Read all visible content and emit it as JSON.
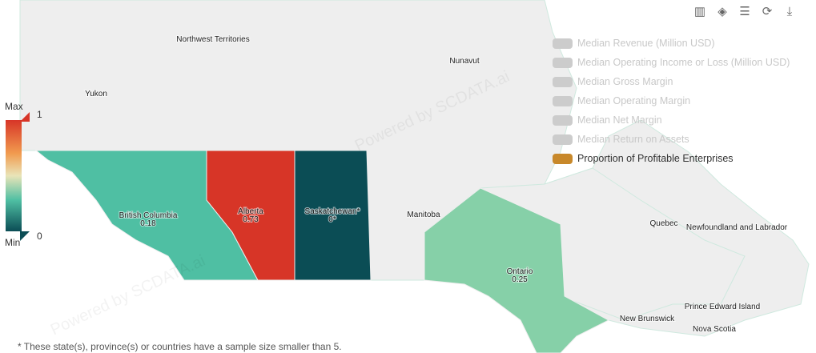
{
  "toolbar": {
    "icons": [
      "bar-chart-icon",
      "tag-icon",
      "table-icon",
      "refresh-icon",
      "download-icon"
    ]
  },
  "legend": {
    "items": [
      {
        "label": "Median Revenue (Million USD)",
        "active": false
      },
      {
        "label": "Median Operating Income or Loss (Million USD)",
        "active": false
      },
      {
        "label": "Median Gross Margin",
        "active": false
      },
      {
        "label": "Median Operating Margin",
        "active": false
      },
      {
        "label": "Median Net Margin",
        "active": false
      },
      {
        "label": "Median Return on Assets",
        "active": false
      },
      {
        "label": "Proportion of Profitable Enterprises",
        "active": true,
        "color": "#c8882a"
      }
    ]
  },
  "visual_map": {
    "max_label": "Max",
    "min_label": "Min",
    "max": "1",
    "min": "0",
    "colors": [
      "#d73527",
      "#f19b4f",
      "#e9e4b8",
      "#4fbfa3",
      "#0b4d55"
    ]
  },
  "regions": {
    "nwt": {
      "name": "Northwest Territories"
    },
    "nunavut": {
      "name": "Nunavut"
    },
    "yukon": {
      "name": "Yukon"
    },
    "bc": {
      "name": "British Columbia",
      "value": "0.18",
      "color": "#4fbfa3"
    },
    "alberta": {
      "name": "Alberta",
      "value": "0.73",
      "color": "#d73527"
    },
    "saskatchewan": {
      "name": "Saskatchewan*",
      "value": "0*",
      "color": "#0b4d55"
    },
    "manitoba": {
      "name": "Manitoba"
    },
    "ontario": {
      "name": "Ontario",
      "value": "0.25",
      "color": "#86d0a8"
    },
    "quebec": {
      "name": "Quebec"
    },
    "nl": {
      "name": "Newfoundland and Labrador"
    },
    "nb": {
      "name": "New Brunswick"
    },
    "pei": {
      "name": "Prince Edward Island"
    },
    "ns": {
      "name": "Nova Scotia"
    }
  },
  "watermark": "Powered by SCDATA.ai",
  "footnote": "* These state(s), province(s) or countries have a sample size smaller than 5."
}
